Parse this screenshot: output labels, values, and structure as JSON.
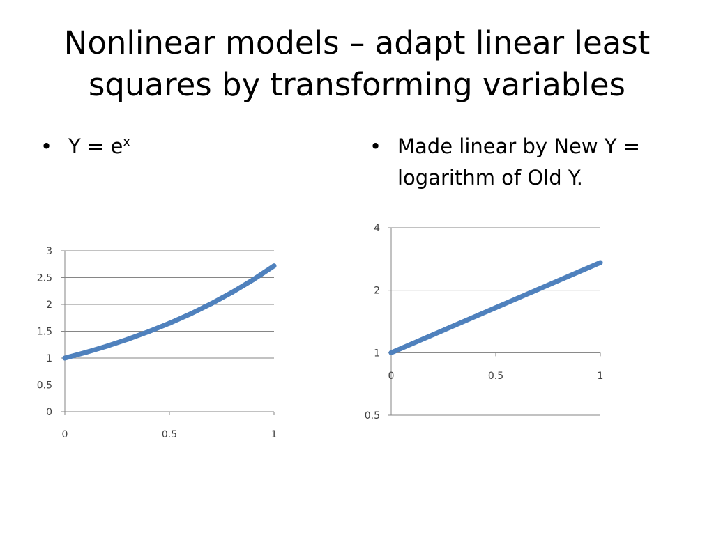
{
  "slide": {
    "title": "Nonlinear models – adapt linear least squares by transforming variables",
    "bullets": [
      {
        "symbol": "•",
        "text": "Y = e",
        "superscript": "x"
      },
      {
        "symbol": "•",
        "text": "Made linear by New Y = logarithm of Old Y."
      }
    ]
  },
  "colors": {
    "series": "#4F81BD",
    "grid": "#868686",
    "text": "#000000"
  },
  "chart_data": [
    {
      "type": "line",
      "title": "",
      "xlabel": "",
      "ylabel": "",
      "xlim": [
        0,
        1
      ],
      "ylim": [
        0,
        3
      ],
      "x_ticks": [
        "0",
        "0.5",
        "1"
      ],
      "y_ticks": [
        "0",
        "0.5",
        "1",
        "1.5",
        "2",
        "2.5",
        "3"
      ],
      "grid": true,
      "legend": "none",
      "series": [
        {
          "x": [
            0,
            0.1,
            0.2,
            0.3,
            0.4,
            0.5,
            0.6,
            0.7,
            0.8,
            0.9,
            1.0
          ],
          "y": [
            1,
            1.105,
            1.221,
            1.35,
            1.492,
            1.649,
            1.822,
            2.014,
            2.226,
            2.46,
            2.718
          ]
        }
      ]
    },
    {
      "type": "line",
      "title": "",
      "xlabel": "",
      "ylabel": "",
      "xlim": [
        0,
        1
      ],
      "ylim": [
        0.5,
        4
      ],
      "yscale": "log",
      "x_ticks": [
        "0",
        "0.5",
        "1"
      ],
      "y_ticks": [
        "0.5",
        "1",
        "2",
        "4"
      ],
      "grid": true,
      "legend": "none",
      "series": [
        {
          "x": [
            0,
            0.1,
            0.2,
            0.3,
            0.4,
            0.5,
            0.6,
            0.7,
            0.8,
            0.9,
            1.0
          ],
          "y": [
            1,
            1.105,
            1.221,
            1.35,
            1.492,
            1.649,
            1.822,
            2.014,
            2.226,
            2.46,
            2.718
          ]
        }
      ]
    }
  ]
}
